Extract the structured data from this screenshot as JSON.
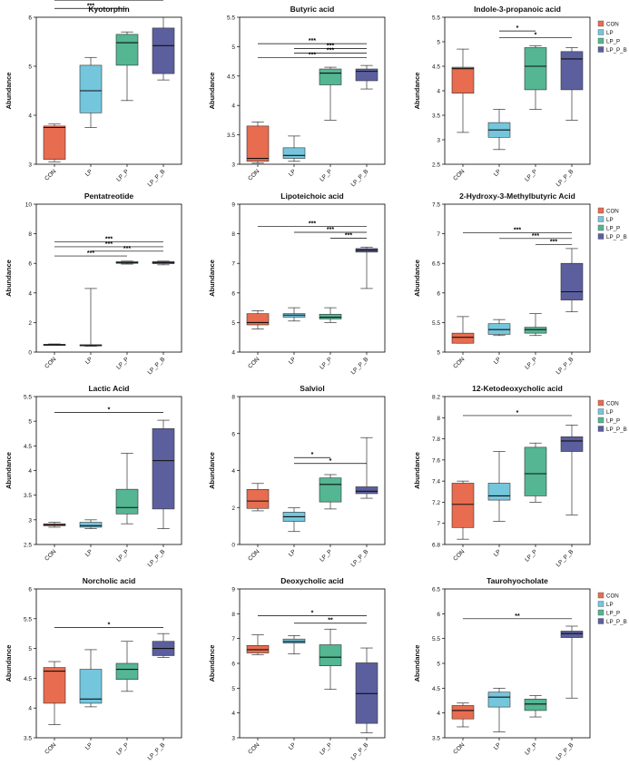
{
  "chart_data": [
    {
      "type": "boxplot",
      "title": "Kyotorphin",
      "ylabel": "Abundance",
      "ylim": [
        3,
        6
      ],
      "yticks": [
        3,
        4,
        5,
        6
      ],
      "categories": [
        "CON",
        "LP",
        "LP_P",
        "LP_P_B"
      ],
      "boxes": [
        {
          "group": "CON",
          "min": 3.05,
          "q1": 3.1,
          "median": 3.75,
          "q3": 3.78,
          "max": 3.82
        },
        {
          "group": "LP",
          "min": 3.75,
          "q1": 4.05,
          "median": 4.5,
          "q3": 5.02,
          "max": 5.18
        },
        {
          "group": "LP_P",
          "min": 4.3,
          "q1": 5.02,
          "median": 5.48,
          "q3": 5.65,
          "max": 5.7
        },
        {
          "group": "LP_P_B",
          "min": 4.72,
          "q1": 4.85,
          "median": 5.42,
          "q3": 5.78,
          "max": 6.0
        }
      ],
      "significance": [
        {
          "from": "CON",
          "to": "LP_P_B",
          "label": "***",
          "y": 6.35
        },
        {
          "from": "CON",
          "to": "LP_P",
          "label": "***",
          "y": 6.18
        }
      ],
      "legend": false
    },
    {
      "type": "boxplot",
      "title": "Butyric acid",
      "ylabel": "Abundance",
      "ylim": [
        3,
        5.5
      ],
      "yticks": [
        3,
        3.5,
        4,
        4.5,
        5,
        5.5
      ],
      "categories": [
        "CON",
        "LP",
        "LP_P",
        "LP_P_B"
      ],
      "boxes": [
        {
          "group": "CON",
          "min": 3.02,
          "q1": 3.05,
          "median": 3.1,
          "q3": 3.65,
          "max": 3.72
        },
        {
          "group": "LP",
          "min": 3.05,
          "q1": 3.1,
          "median": 3.15,
          "q3": 3.28,
          "max": 3.48
        },
        {
          "group": "LP_P",
          "min": 3.75,
          "q1": 4.35,
          "median": 4.55,
          "q3": 4.62,
          "max": 4.65
        },
        {
          "group": "LP_P_B",
          "min": 4.28,
          "q1": 4.42,
          "median": 4.58,
          "q3": 4.62,
          "max": 4.68
        }
      ],
      "significance": [
        {
          "from": "CON",
          "to": "LP_P_B",
          "label": "***",
          "y": 5.05
        },
        {
          "from": "LP",
          "to": "LP_P_B",
          "label": "***",
          "y": 4.97
        },
        {
          "from": "LP",
          "to": "LP_P_B",
          "label": "***",
          "y": 4.89
        },
        {
          "from": "CON",
          "to": "LP_P_B",
          "label": "***",
          "y": 4.81
        }
      ],
      "legend": false
    },
    {
      "type": "boxplot",
      "title": "Indole-3-propanoic acid",
      "ylabel": "Abundance",
      "ylim": [
        2.5,
        5.5
      ],
      "yticks": [
        2.5,
        3,
        3.5,
        4,
        4.5,
        5,
        5.5
      ],
      "categories": [
        "CON",
        "LP",
        "LP_P",
        "LP_P_B"
      ],
      "boxes": [
        {
          "group": "CON",
          "min": 3.15,
          "q1": 3.95,
          "median": 4.45,
          "q3": 4.48,
          "max": 4.85
        },
        {
          "group": "LP",
          "min": 2.8,
          "q1": 3.05,
          "median": 3.2,
          "q3": 3.35,
          "max": 3.62
        },
        {
          "group": "LP_P",
          "min": 3.62,
          "q1": 4.02,
          "median": 4.5,
          "q3": 4.88,
          "max": 4.92
        },
        {
          "group": "LP_P_B",
          "min": 3.4,
          "q1": 4.02,
          "median": 4.65,
          "q3": 4.8,
          "max": 4.88
        }
      ],
      "significance": [
        {
          "from": "LP",
          "to": "LP_P",
          "label": "*",
          "y": 5.22
        },
        {
          "from": "LP",
          "to": "LP_P_B",
          "label": "*",
          "y": 5.08
        }
      ],
      "legend": true
    },
    {
      "type": "boxplot",
      "title": "Pentatreotide",
      "ylabel": "Abundance",
      "ylim": [
        0,
        10
      ],
      "yticks": [
        0,
        2,
        4,
        6,
        8,
        10
      ],
      "categories": [
        "CON",
        "LP",
        "LP_P",
        "LP_P_B"
      ],
      "boxes": [
        {
          "group": "CON",
          "min": 0.45,
          "q1": 0.48,
          "median": 0.5,
          "q3": 0.52,
          "max": 0.55
        },
        {
          "group": "LP",
          "min": 0.4,
          "q1": 0.42,
          "median": 0.45,
          "q3": 0.5,
          "max": 4.3
        },
        {
          "group": "LP_P",
          "min": 5.95,
          "q1": 6.0,
          "median": 6.05,
          "q3": 6.12,
          "max": 6.15
        },
        {
          "group": "LP_P_B",
          "min": 5.9,
          "q1": 5.98,
          "median": 6.05,
          "q3": 6.12,
          "max": 6.15
        }
      ],
      "significance": [
        {
          "from": "CON",
          "to": "LP_P_B",
          "label": "***",
          "y": 7.45
        },
        {
          "from": "CON",
          "to": "LP_P_B",
          "label": "***",
          "y": 7.12
        },
        {
          "from": "LP",
          "to": "LP_P_B",
          "label": "***",
          "y": 6.82
        },
        {
          "from": "CON",
          "to": "LP_P",
          "label": "***",
          "y": 6.5
        }
      ],
      "legend": false
    },
    {
      "type": "boxplot",
      "title": "Lipoteichoic acid",
      "ylabel": "Abundance",
      "ylim": [
        4,
        9
      ],
      "yticks": [
        4,
        5,
        6,
        7,
        8,
        9
      ],
      "categories": [
        "CON",
        "LP",
        "LP_P",
        "LP_P_B"
      ],
      "boxes": [
        {
          "group": "CON",
          "min": 4.78,
          "q1": 4.92,
          "median": 5.0,
          "q3": 5.3,
          "max": 5.4
        },
        {
          "group": "LP",
          "min": 5.05,
          "q1": 5.18,
          "median": 5.25,
          "q3": 5.3,
          "max": 5.5
        },
        {
          "group": "LP_P",
          "min": 5.0,
          "q1": 5.12,
          "median": 5.18,
          "q3": 5.28,
          "max": 5.5
        },
        {
          "group": "LP_P_B",
          "min": 6.15,
          "q1": 7.38,
          "median": 7.45,
          "q3": 7.5,
          "max": 7.55
        }
      ],
      "significance": [
        {
          "from": "CON",
          "to": "LP_P_B",
          "label": "***",
          "y": 8.25
        },
        {
          "from": "LP",
          "to": "LP_P_B",
          "label": "***",
          "y": 8.05
        },
        {
          "from": "LP_P",
          "to": "LP_P_B",
          "label": "***",
          "y": 7.85
        }
      ],
      "legend": false
    },
    {
      "type": "boxplot",
      "title": "2-Hydroxy-3-Methylbutyric Acid",
      "ylabel": "Abundance",
      "ylim": [
        5,
        7.5
      ],
      "yticks": [
        5,
        5.5,
        6,
        6.5,
        7,
        7.5
      ],
      "categories": [
        "CON",
        "LP",
        "LP_P",
        "LP_P_B"
      ],
      "boxes": [
        {
          "group": "CON",
          "min": 5.15,
          "q1": 5.15,
          "median": 5.25,
          "q3": 5.32,
          "max": 5.6
        },
        {
          "group": "LP",
          "min": 5.28,
          "q1": 5.3,
          "median": 5.38,
          "q3": 5.48,
          "max": 5.55
        },
        {
          "group": "LP_P",
          "min": 5.28,
          "q1": 5.32,
          "median": 5.38,
          "q3": 5.42,
          "max": 5.65
        },
        {
          "group": "LP_P_B",
          "min": 5.68,
          "q1": 5.88,
          "median": 6.02,
          "q3": 6.5,
          "max": 6.75
        }
      ],
      "significance": [
        {
          "from": "CON",
          "to": "LP_P_B",
          "label": "***",
          "y": 7.02
        },
        {
          "from": "LP",
          "to": "LP_P_B",
          "label": "***",
          "y": 6.92
        },
        {
          "from": "LP_P",
          "to": "LP_P_B",
          "label": "***",
          "y": 6.82
        }
      ],
      "legend": true
    },
    {
      "type": "boxplot",
      "title": "Lactic Acid",
      "ylabel": "Abundance",
      "ylim": [
        2.5,
        5.5
      ],
      "yticks": [
        2.5,
        3,
        3.5,
        4,
        4.5,
        5,
        5.5
      ],
      "categories": [
        "CON",
        "LP",
        "LP_P",
        "LP_P_B"
      ],
      "boxes": [
        {
          "group": "CON",
          "min": 2.85,
          "q1": 2.88,
          "median": 2.9,
          "q3": 2.92,
          "max": 2.95
        },
        {
          "group": "LP",
          "min": 2.82,
          "q1": 2.85,
          "median": 2.88,
          "q3": 2.95,
          "max": 3.0
        },
        {
          "group": "LP_P",
          "min": 2.92,
          "q1": 3.12,
          "median": 3.25,
          "q3": 3.62,
          "max": 4.35
        },
        {
          "group": "LP_P_B",
          "min": 2.82,
          "q1": 3.22,
          "median": 4.2,
          "q3": 4.85,
          "max": 5.02
        }
      ],
      "significance": [
        {
          "from": "CON",
          "to": "LP_P_B",
          "label": "*",
          "y": 5.18
        }
      ],
      "legend": false
    },
    {
      "type": "boxplot",
      "title": "Salviol",
      "ylabel": "Abundance",
      "ylim": [
        0,
        8
      ],
      "yticks": [
        0,
        2,
        4,
        6,
        8
      ],
      "categories": [
        "CON",
        "LP",
        "LP_P",
        "LP_P_B"
      ],
      "boxes": [
        {
          "group": "CON",
          "min": 1.82,
          "q1": 1.95,
          "median": 2.35,
          "q3": 2.98,
          "max": 3.3
        },
        {
          "group": "LP",
          "min": 0.7,
          "q1": 1.25,
          "median": 1.5,
          "q3": 1.75,
          "max": 1.98
        },
        {
          "group": "LP_P",
          "min": 1.92,
          "q1": 2.3,
          "median": 3.25,
          "q3": 3.6,
          "max": 3.78
        },
        {
          "group": "LP_P_B",
          "min": 2.5,
          "q1": 2.75,
          "median": 2.88,
          "q3": 3.12,
          "max": 5.78
        }
      ],
      "significance": [
        {
          "from": "LP",
          "to": "LP_P",
          "label": "*",
          "y": 4.7
        },
        {
          "from": "LP",
          "to": "LP_P_B",
          "label": "*",
          "y": 4.38
        }
      ],
      "legend": false
    },
    {
      "type": "boxplot",
      "title": "12-Ketodeoxycholic acid",
      "ylabel": "Abundance",
      "ylim": [
        6.8,
        8.2
      ],
      "yticks": [
        6.8,
        7,
        7.2,
        7.4,
        7.6,
        7.8,
        8,
        8.2
      ],
      "categories": [
        "CON",
        "LP",
        "LP_P",
        "LP_P_B"
      ],
      "boxes": [
        {
          "group": "CON",
          "min": 6.85,
          "q1": 6.96,
          "median": 7.18,
          "q3": 7.38,
          "max": 7.4
        },
        {
          "group": "LP",
          "min": 7.02,
          "q1": 7.22,
          "median": 7.26,
          "q3": 7.38,
          "max": 7.68
        },
        {
          "group": "LP_P",
          "min": 7.2,
          "q1": 7.26,
          "median": 7.47,
          "q3": 7.72,
          "max": 7.76
        },
        {
          "group": "LP_P_B",
          "min": 7.08,
          "q1": 7.68,
          "median": 7.78,
          "q3": 7.82,
          "max": 7.93
        }
      ],
      "significance": [
        {
          "from": "CON",
          "to": "LP_P_B",
          "label": "*",
          "y": 8.02
        }
      ],
      "legend": true
    },
    {
      "type": "boxplot",
      "title": "Norcholic acid",
      "ylabel": "Abundance",
      "ylim": [
        3.5,
        6
      ],
      "yticks": [
        3.5,
        4,
        4.5,
        5,
        5.5,
        6
      ],
      "categories": [
        "CON",
        "LP",
        "LP_P",
        "LP_P_B"
      ],
      "boxes": [
        {
          "group": "CON",
          "min": 3.72,
          "q1": 4.08,
          "median": 4.62,
          "q3": 4.68,
          "max": 4.78
        },
        {
          "group": "LP",
          "min": 4.02,
          "q1": 4.08,
          "median": 4.15,
          "q3": 4.65,
          "max": 4.98
        },
        {
          "group": "LP_P",
          "min": 4.28,
          "q1": 4.48,
          "median": 4.65,
          "q3": 4.75,
          "max": 5.12
        },
        {
          "group": "LP_P_B",
          "min": 4.85,
          "q1": 4.88,
          "median": 5.0,
          "q3": 5.12,
          "max": 5.25
        }
      ],
      "significance": [
        {
          "from": "CON",
          "to": "LP_P_B",
          "label": "*",
          "y": 5.35
        }
      ],
      "legend": false
    },
    {
      "type": "boxplot",
      "title": "Deoxycholic acid",
      "ylabel": "Abundance",
      "ylim": [
        3,
        9
      ],
      "yticks": [
        3,
        4,
        5,
        6,
        7,
        8,
        9
      ],
      "categories": [
        "CON",
        "LP",
        "LP_P",
        "LP_P_B"
      ],
      "boxes": [
        {
          "group": "CON",
          "min": 6.35,
          "q1": 6.42,
          "median": 6.55,
          "q3": 6.72,
          "max": 7.15
        },
        {
          "group": "LP",
          "min": 6.38,
          "q1": 6.82,
          "median": 6.88,
          "q3": 6.98,
          "max": 7.12
        },
        {
          "group": "LP_P",
          "min": 4.95,
          "q1": 5.9,
          "median": 6.25,
          "q3": 6.75,
          "max": 7.38
        },
        {
          "group": "LP_P_B",
          "min": 3.2,
          "q1": 3.58,
          "median": 4.78,
          "q3": 6.02,
          "max": 6.62
        }
      ],
      "significance": [
        {
          "from": "CON",
          "to": "LP_P_B",
          "label": "*",
          "y": 7.92
        },
        {
          "from": "LP",
          "to": "LP_P_B",
          "label": "**",
          "y": 7.62
        }
      ],
      "legend": false
    },
    {
      "type": "boxplot",
      "title": "Taurohyocholate",
      "ylabel": "Abundance",
      "ylim": [
        3.5,
        6.5
      ],
      "yticks": [
        3.5,
        4,
        4.5,
        5,
        5.5,
        6,
        6.5
      ],
      "categories": [
        "CON",
        "LP",
        "LP_P",
        "LP_P_B"
      ],
      "boxes": [
        {
          "group": "CON",
          "min": 3.72,
          "q1": 3.88,
          "median": 4.05,
          "q3": 4.15,
          "max": 4.2
        },
        {
          "group": "LP",
          "min": 3.62,
          "q1": 4.12,
          "median": 4.32,
          "q3": 4.42,
          "max": 4.5
        },
        {
          "group": "LP_P",
          "min": 3.92,
          "q1": 4.05,
          "median": 4.18,
          "q3": 4.28,
          "max": 4.35
        },
        {
          "group": "LP_P_B",
          "min": 4.3,
          "q1": 5.52,
          "median": 5.6,
          "q3": 5.65,
          "max": 5.75
        }
      ],
      "significance": [
        {
          "from": "CON",
          "to": "LP_P_B",
          "label": "**",
          "y": 5.9
        }
      ],
      "legend": true
    }
  ],
  "legend_entries": [
    "CON",
    "LP",
    "LP_P",
    "LP_P_B"
  ],
  "group_colors": {
    "CON": "#e86c4f",
    "LP": "#74c6dd",
    "LP_P": "#54b693",
    "LP_P_B": "#5b5f9e"
  }
}
